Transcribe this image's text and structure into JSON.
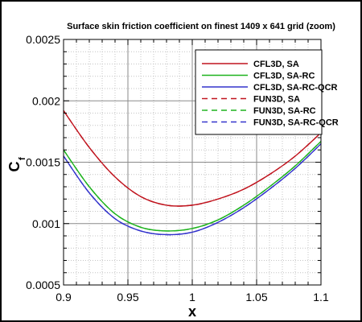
{
  "chart_data": {
    "type": "line",
    "title": "Surface skin friction coefficient on finest 1409 x 641 grid (zoom)",
    "xlabel": "x",
    "ylabel": "C",
    "ylabel_subscript": "f",
    "xlim": [
      0.9,
      1.1
    ],
    "ylim": [
      0.0005,
      0.0025
    ],
    "x_ticks": [
      "0.9",
      "0.95",
      "1",
      "1.05",
      "1.1"
    ],
    "x_tick_values": [
      0.9,
      0.95,
      1.0,
      1.05,
      1.1
    ],
    "y_ticks": [
      "0.0005",
      "0.001",
      "0.0015",
      "0.002",
      "0.0025"
    ],
    "y_tick_values": [
      0.0005,
      0.001,
      0.0015,
      0.002,
      0.0025
    ],
    "grid": true,
    "legend_position": "top-right",
    "x": [
      0.9,
      0.92,
      0.94,
      0.96,
      0.98,
      1.0,
      1.02,
      1.04,
      1.06,
      1.08,
      1.1
    ],
    "series": [
      {
        "name": "CFL3D, SA",
        "color": "#c0141e",
        "dash": "solid",
        "values": [
          0.00192,
          0.00162,
          0.00138,
          0.00122,
          0.00115,
          0.00115,
          0.0012,
          0.00128,
          0.0014,
          0.00155,
          0.00174
        ]
      },
      {
        "name": "CFL3D, SA-RC",
        "color": "#1db31d",
        "dash": "solid",
        "values": [
          0.0016,
          0.0013,
          0.00108,
          0.00097,
          0.00094,
          0.00096,
          0.00103,
          0.00115,
          0.0013,
          0.00147,
          0.00167
        ]
      },
      {
        "name": "CFL3D, SA-RC-QCR",
        "color": "#3333cc",
        "dash": "solid",
        "values": [
          0.00155,
          0.00125,
          0.00104,
          0.00094,
          0.00091,
          0.00093,
          0.00101,
          0.00113,
          0.00128,
          0.00145,
          0.00165
        ]
      },
      {
        "name": "FUN3D, SA",
        "color": "#c0141e",
        "dash": "dashed",
        "values": [
          0.00192,
          0.00162,
          0.00138,
          0.00122,
          0.00115,
          0.00115,
          0.0012,
          0.00128,
          0.0014,
          0.00155,
          0.00174
        ]
      },
      {
        "name": "FUN3D, SA-RC",
        "color": "#1db31d",
        "dash": "dashed",
        "values": [
          0.0016,
          0.0013,
          0.00108,
          0.00097,
          0.00094,
          0.00096,
          0.00103,
          0.00115,
          0.0013,
          0.00147,
          0.00167
        ]
      },
      {
        "name": "FUN3D, SA-RC-QCR",
        "color": "#3333cc",
        "dash": "dashed",
        "values": [
          0.00155,
          0.00125,
          0.00104,
          0.00094,
          0.00091,
          0.00093,
          0.00101,
          0.00113,
          0.00128,
          0.00145,
          0.00165
        ]
      }
    ]
  }
}
